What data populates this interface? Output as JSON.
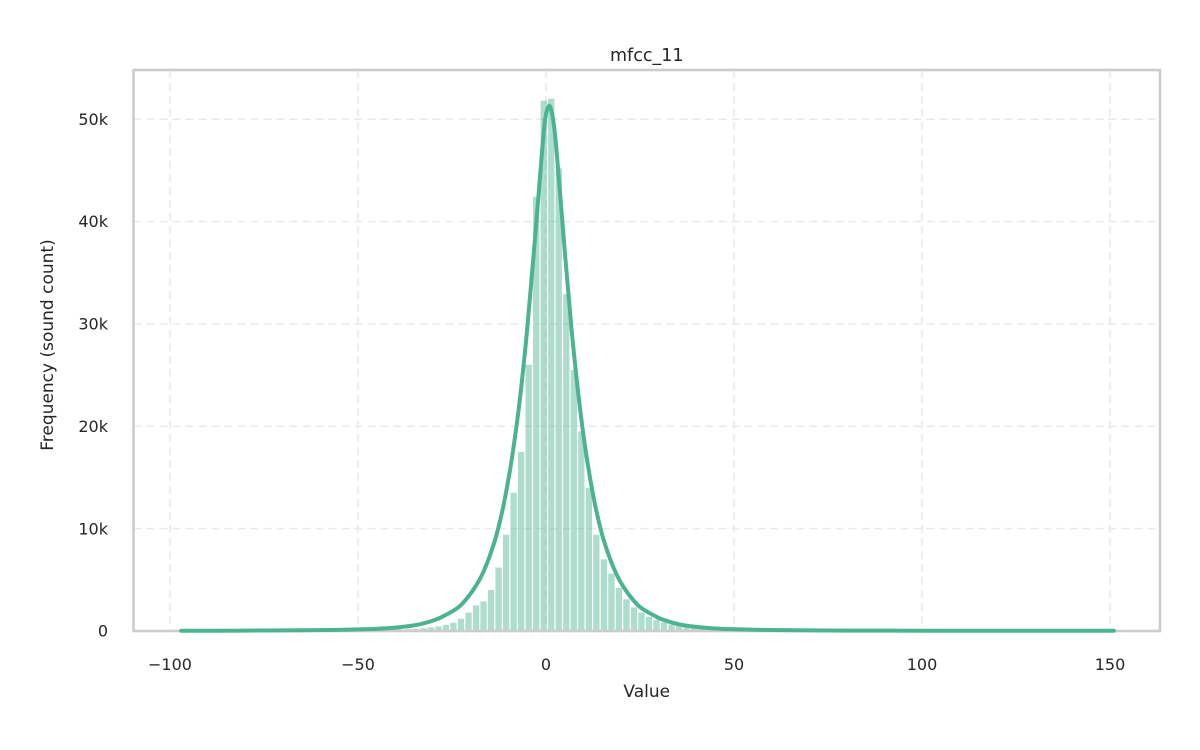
{
  "figure": {
    "background": "#ffffff"
  },
  "chart_data": {
    "type": "bar",
    "subtype": "histogram_with_kde",
    "title": "mfcc_11",
    "xlabel": "Value",
    "ylabel": "Frequency (sound count)",
    "xlim": [
      -109.7,
      163.3
    ],
    "ylim": [
      0,
      54800
    ],
    "grid": "dashed light-gray, both axes",
    "legend": "none",
    "x_ticks": [
      {
        "value": -100,
        "label": "−100"
      },
      {
        "value": -50,
        "label": "−50"
      },
      {
        "value": 0,
        "label": "0"
      },
      {
        "value": 50,
        "label": "50"
      },
      {
        "value": 100,
        "label": "100"
      },
      {
        "value": 150,
        "label": "150"
      }
    ],
    "y_ticks": [
      {
        "value": 0,
        "label": "0"
      },
      {
        "value": 10000,
        "label": "10k"
      },
      {
        "value": 20000,
        "label": "20k"
      },
      {
        "value": 30000,
        "label": "30k"
      },
      {
        "value": 40000,
        "label": "40k"
      },
      {
        "value": 50000,
        "label": "50k"
      }
    ],
    "bin_width": 2,
    "bars_note": "histogram bins: [center_value, count]",
    "bars": [
      [
        -44.6,
        60
      ],
      [
        -42.6,
        80
      ],
      [
        -40.6,
        100
      ],
      [
        -38.6,
        130
      ],
      [
        -36.6,
        170
      ],
      [
        -34.6,
        220
      ],
      [
        -32.6,
        280
      ],
      [
        -30.6,
        350
      ],
      [
        -28.6,
        450
      ],
      [
        -26.6,
        600
      ],
      [
        -24.6,
        800
      ],
      [
        -22.6,
        1200
      ],
      [
        -20.6,
        1800
      ],
      [
        -18.6,
        2500
      ],
      [
        -16.6,
        2900
      ],
      [
        -14.6,
        4000
      ],
      [
        -12.6,
        6200
      ],
      [
        -10.6,
        9400
      ],
      [
        -8.6,
        13500
      ],
      [
        -6.6,
        17500
      ],
      [
        -4.6,
        26000
      ],
      [
        -2.6,
        42400
      ],
      [
        -0.6,
        51800
      ],
      [
        1.4,
        52000
      ],
      [
        3.4,
        45200
      ],
      [
        5.4,
        32900
      ],
      [
        7.4,
        25500
      ],
      [
        9.4,
        19500
      ],
      [
        11.4,
        14000
      ],
      [
        13.4,
        9400
      ],
      [
        15.4,
        7000
      ],
      [
        17.4,
        5600
      ],
      [
        19.4,
        4200
      ],
      [
        21.4,
        3100
      ],
      [
        23.4,
        2300
      ],
      [
        25.4,
        1800
      ],
      [
        27.4,
        1400
      ],
      [
        29.4,
        1100
      ],
      [
        31.4,
        850
      ],
      [
        33.4,
        650
      ],
      [
        35.4,
        500
      ],
      [
        37.4,
        400
      ],
      [
        39.4,
        300
      ],
      [
        41.4,
        240
      ],
      [
        43.4,
        180
      ],
      [
        45.4,
        140
      ],
      [
        47.4,
        110
      ],
      [
        49.4,
        90
      ],
      [
        51.4,
        70
      ],
      [
        53.4,
        50
      ],
      [
        55.4,
        40
      ]
    ],
    "kde_note": "kde curve samples: [value, count]",
    "kde": [
      [
        -97,
        20
      ],
      [
        -80,
        40
      ],
      [
        -64,
        70
      ],
      [
        -54,
        120
      ],
      [
        -46,
        200
      ],
      [
        -41,
        300
      ],
      [
        -37,
        450
      ],
      [
        -33,
        700
      ],
      [
        -29,
        1150
      ],
      [
        -27,
        1500
      ],
      [
        -25,
        1900
      ],
      [
        -23,
        2400
      ],
      [
        -21,
        3200
      ],
      [
        -19,
        4200
      ],
      [
        -17,
        5500
      ],
      [
        -15,
        7300
      ],
      [
        -13,
        9600
      ],
      [
        -11,
        12800
      ],
      [
        -9,
        17000
      ],
      [
        -7,
        22500
      ],
      [
        -5,
        29500
      ],
      [
        -3,
        38000
      ],
      [
        -1,
        47000
      ],
      [
        -0.2,
        50000
      ],
      [
        0.8,
        51300
      ],
      [
        1.8,
        50200
      ],
      [
        2.8,
        47000
      ],
      [
        4.8,
        38000
      ],
      [
        6.8,
        29500
      ],
      [
        8.8,
        22500
      ],
      [
        10.8,
        17000
      ],
      [
        12.8,
        12800
      ],
      [
        14.8,
        9600
      ],
      [
        16.8,
        7300
      ],
      [
        18.8,
        5500
      ],
      [
        20.8,
        4200
      ],
      [
        22.8,
        3200
      ],
      [
        24.8,
        2400
      ],
      [
        26.8,
        1900
      ],
      [
        28.8,
        1500
      ],
      [
        30.8,
        1150
      ],
      [
        34.8,
        700
      ],
      [
        38.8,
        450
      ],
      [
        42.8,
        300
      ],
      [
        47.8,
        200
      ],
      [
        55.8,
        120
      ],
      [
        65.8,
        70
      ],
      [
        80.8,
        40
      ],
      [
        100,
        28
      ],
      [
        130,
        22
      ],
      [
        151,
        18
      ]
    ],
    "colors": {
      "kde_line": "#4cb391",
      "bar_fill": "rgba(76,179,145,0.45)",
      "bar_gap": "#ffffff",
      "grid": "#eaeaea",
      "spine": "#cccccc",
      "text": "#262626",
      "background": "#ffffff"
    }
  }
}
